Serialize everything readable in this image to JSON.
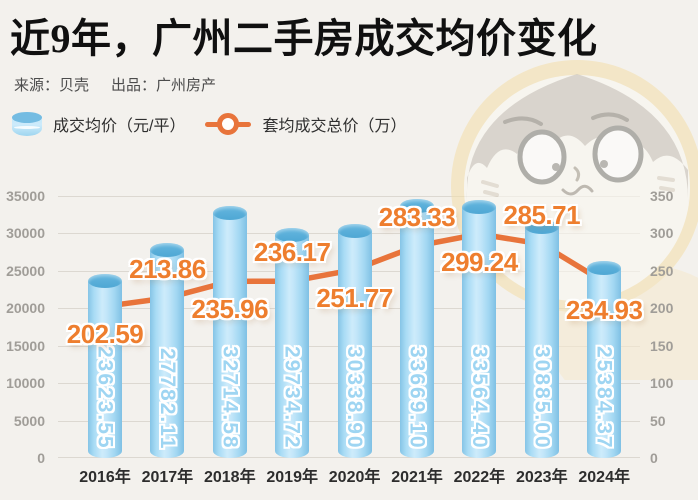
{
  "header": {
    "title": "近9年，广州二手房成交均价变化",
    "source": "来源：贝壳",
    "producer": "出品：广州房产"
  },
  "legend": {
    "bar_label": "成交均价（元/平）",
    "line_label": "套均成交总价（万）"
  },
  "chart_data": {
    "type": "bar+line",
    "title": "近9年，广州二手房成交均价变化",
    "categories": [
      "2016年",
      "2017年",
      "2018年",
      "2019年",
      "2020年",
      "2021年",
      "2022年",
      "2023年",
      "2024年"
    ],
    "series": [
      {
        "name": "成交均价（元/平）",
        "type": "bar",
        "axis": "left",
        "color": "#a9dcf5",
        "values": [
          23623.55,
          27782.11,
          32714.58,
          29734.72,
          30338.9,
          33669.1,
          33564.4,
          30885.0,
          25384.37
        ],
        "value_labels": [
          "23623.55",
          "27782.11",
          "32714.58",
          "29734.72",
          "30338.90",
          "33669.10",
          "33564.40",
          "30885.00",
          "25384.37"
        ]
      },
      {
        "name": "套均成交总价（万）",
        "type": "line",
        "axis": "right",
        "color": "#e8743b",
        "values": [
          202.59,
          213.86,
          235.96,
          236.17,
          251.77,
          283.33,
          299.24,
          285.71,
          234.93
        ],
        "value_labels": [
          "202.59",
          "213.86",
          "235.96",
          "236.17",
          "251.77",
          "283.33",
          "299.24",
          "285.71",
          "234.93"
        ],
        "label_side": [
          "below",
          "above",
          "below",
          "above",
          "below",
          "above",
          "below",
          "above",
          "below"
        ]
      }
    ],
    "left_axis": {
      "min": 0,
      "max": 35000,
      "ticks": [
        "0",
        "5000",
        "10000",
        "15000",
        "20000",
        "25000",
        "30000",
        "35000"
      ]
    },
    "right_axis": {
      "min": 0,
      "max": 350,
      "ticks": [
        "0",
        "50",
        "100",
        "150",
        "200",
        "250",
        "300",
        "350"
      ]
    },
    "grid": true,
    "legend_position": "top-left"
  },
  "colors": {
    "background": "#f3f1ed",
    "bar_fill": "#a9dcf5",
    "bar_top": "#55acd8",
    "line": "#e8743b",
    "value_label_orange": "#ee7e2e",
    "axis_text": "#a09d98",
    "x_axis_text": "#2d2d2d"
  }
}
